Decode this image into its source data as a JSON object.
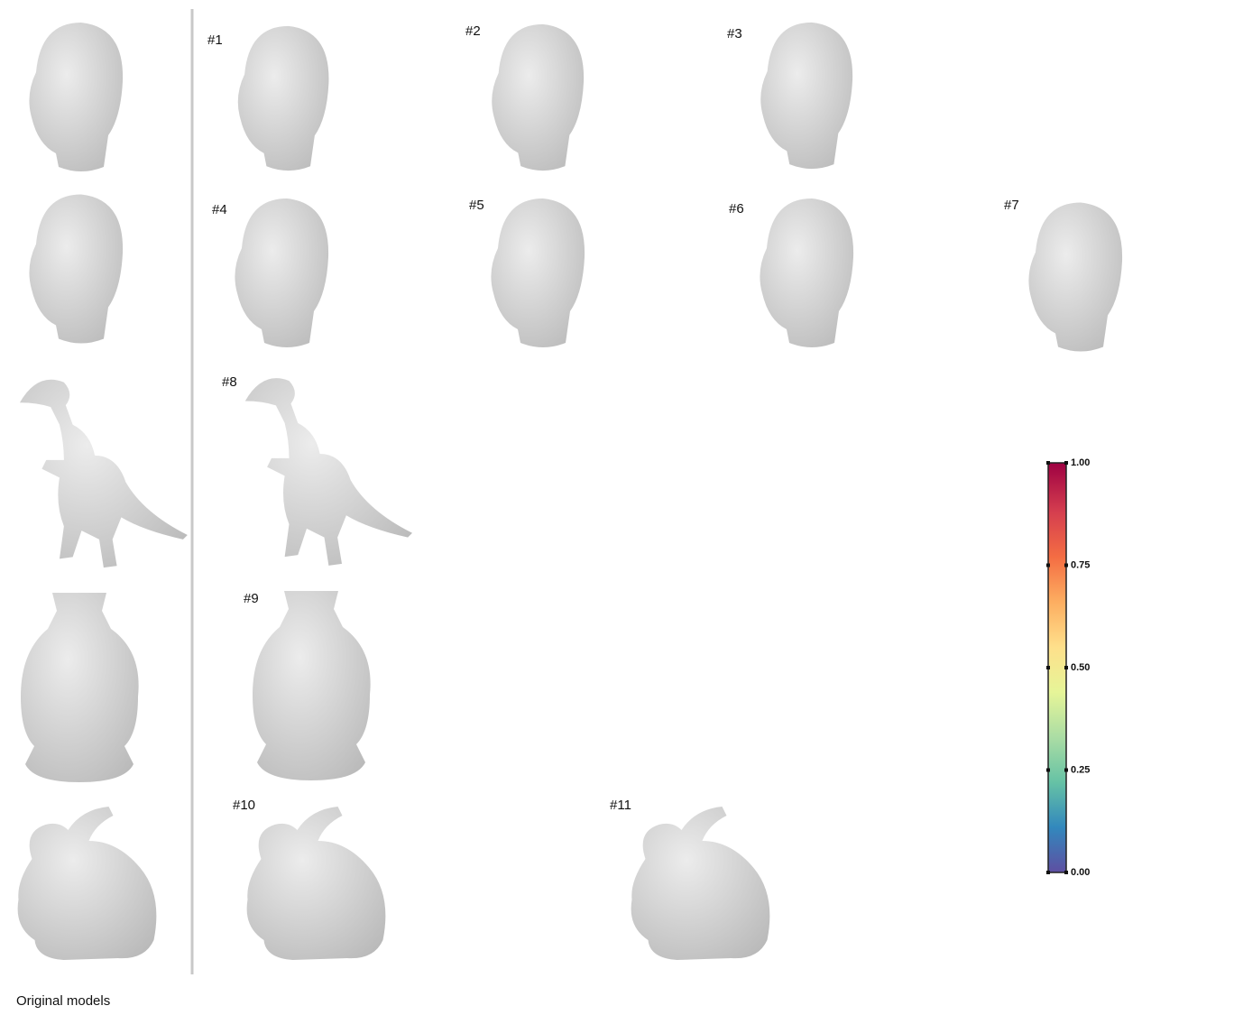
{
  "labels": [
    "#1",
    "#2",
    "#3",
    "#4",
    "#5",
    "#6",
    "#7",
    "#8",
    "#9",
    "#10",
    "#11"
  ],
  "caption": "Original models",
  "colorbar": {
    "lim": [
      0,
      1
    ],
    "ticks": [
      {
        "value": 0,
        "label": "0.00"
      },
      {
        "value": 0.25,
        "label": "0.25"
      },
      {
        "value": 0.5,
        "label": "0.50"
      },
      {
        "value": 0.75,
        "label": "0.75"
      },
      {
        "value": 1,
        "label": "1.00"
      }
    ]
  }
}
